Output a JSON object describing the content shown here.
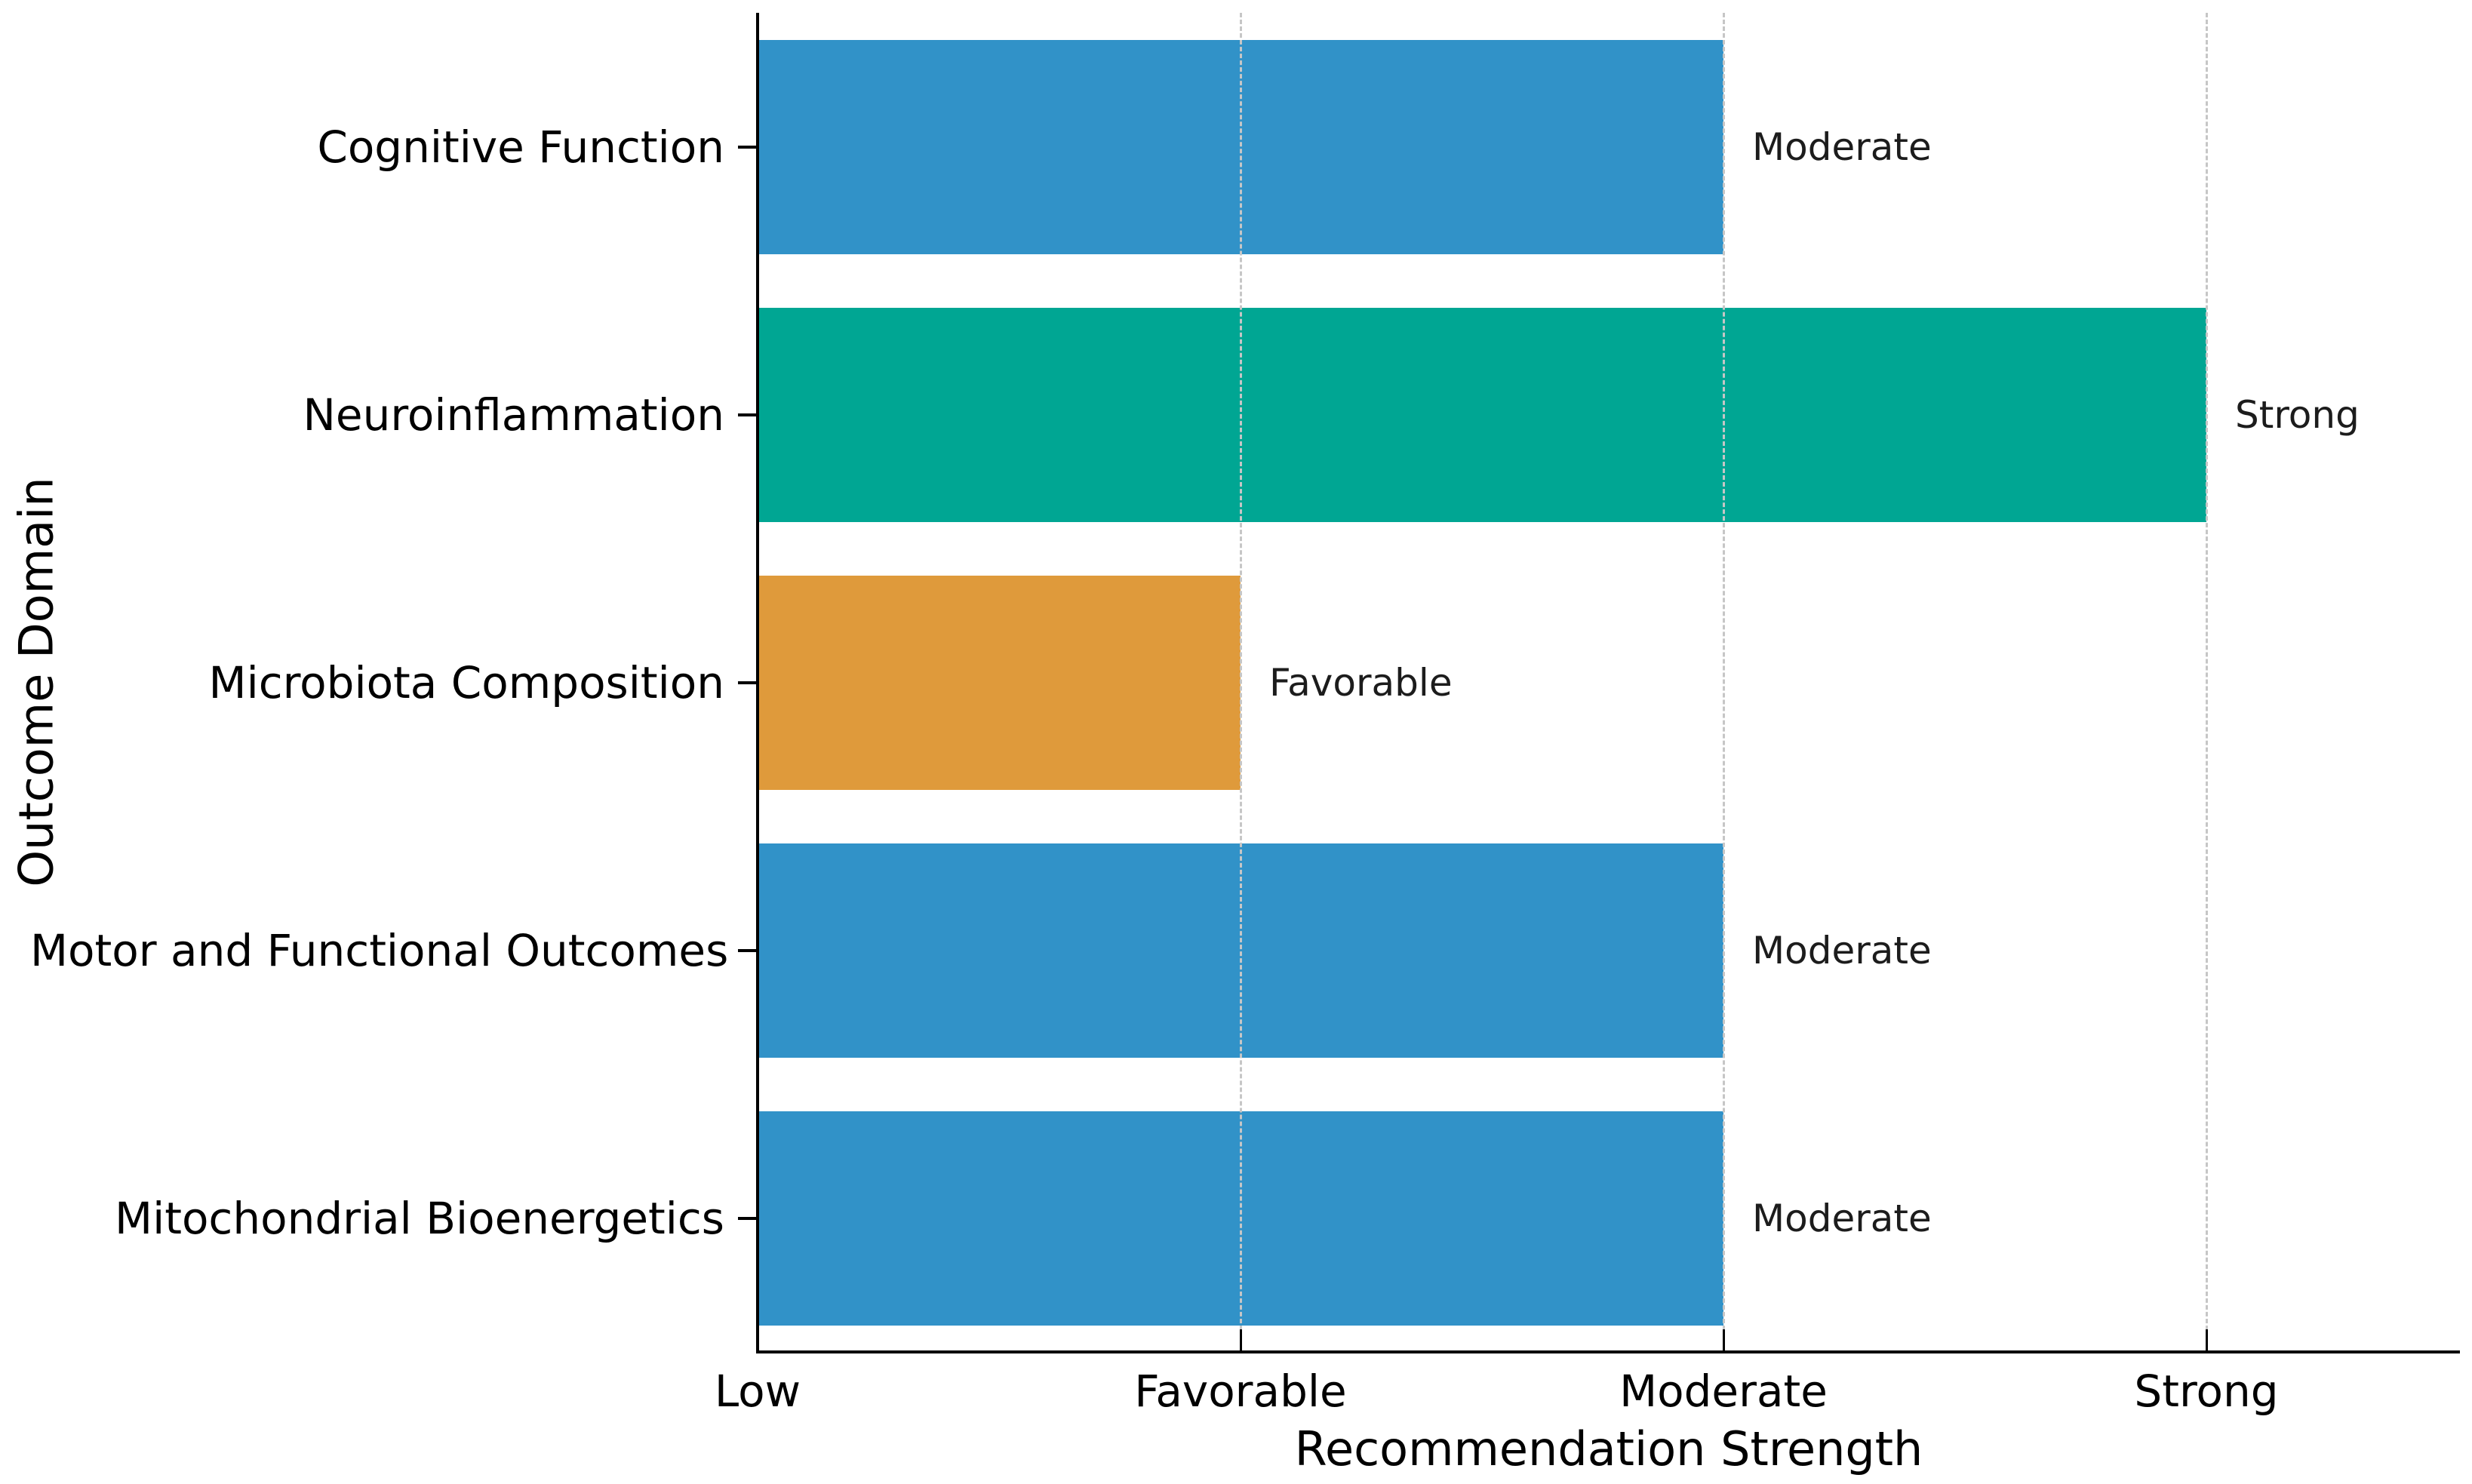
{
  "figure": {
    "background": "#FFFFFF",
    "title": "",
    "xlabel": "Recommendation Strength",
    "ylabel": "Outcome Domain"
  },
  "chart_data": {
    "type": "bar",
    "orientation": "horizontal",
    "title": "",
    "xlabel": "Recommendation Strength",
    "ylabel": "Outcome Domain",
    "categories": [
      "Cognitive Function",
      "Neuroinflammation",
      "Microbiota Composition",
      "Motor and Functional Outcomes",
      "Mitochondrial Bioenergetics"
    ],
    "values": [
      2,
      3,
      1,
      2,
      2
    ],
    "value_labels": [
      "Moderate",
      "Strong",
      "Favorable",
      "Moderate",
      "Moderate"
    ],
    "bar_colors": [
      "#3192C8",
      "#00A693",
      "#DF9A3B",
      "#3192C8",
      "#3192C8"
    ],
    "x_ticks": [
      {
        "value": 0,
        "label": "Low"
      },
      {
        "value": 1,
        "label": "Favorable"
      },
      {
        "value": 2,
        "label": "Moderate"
      },
      {
        "value": 3,
        "label": "Strong"
      }
    ],
    "xlim": [
      0,
      3.52
    ],
    "grid": {
      "axis": "x",
      "at_values": [
        1,
        2,
        3
      ],
      "style": "dashed",
      "color": "#C6C6C6"
    },
    "legend": null,
    "colors": {
      "axis": "#000000",
      "tick_text": "#000000",
      "annotation_text": "#1C1C1C"
    }
  }
}
